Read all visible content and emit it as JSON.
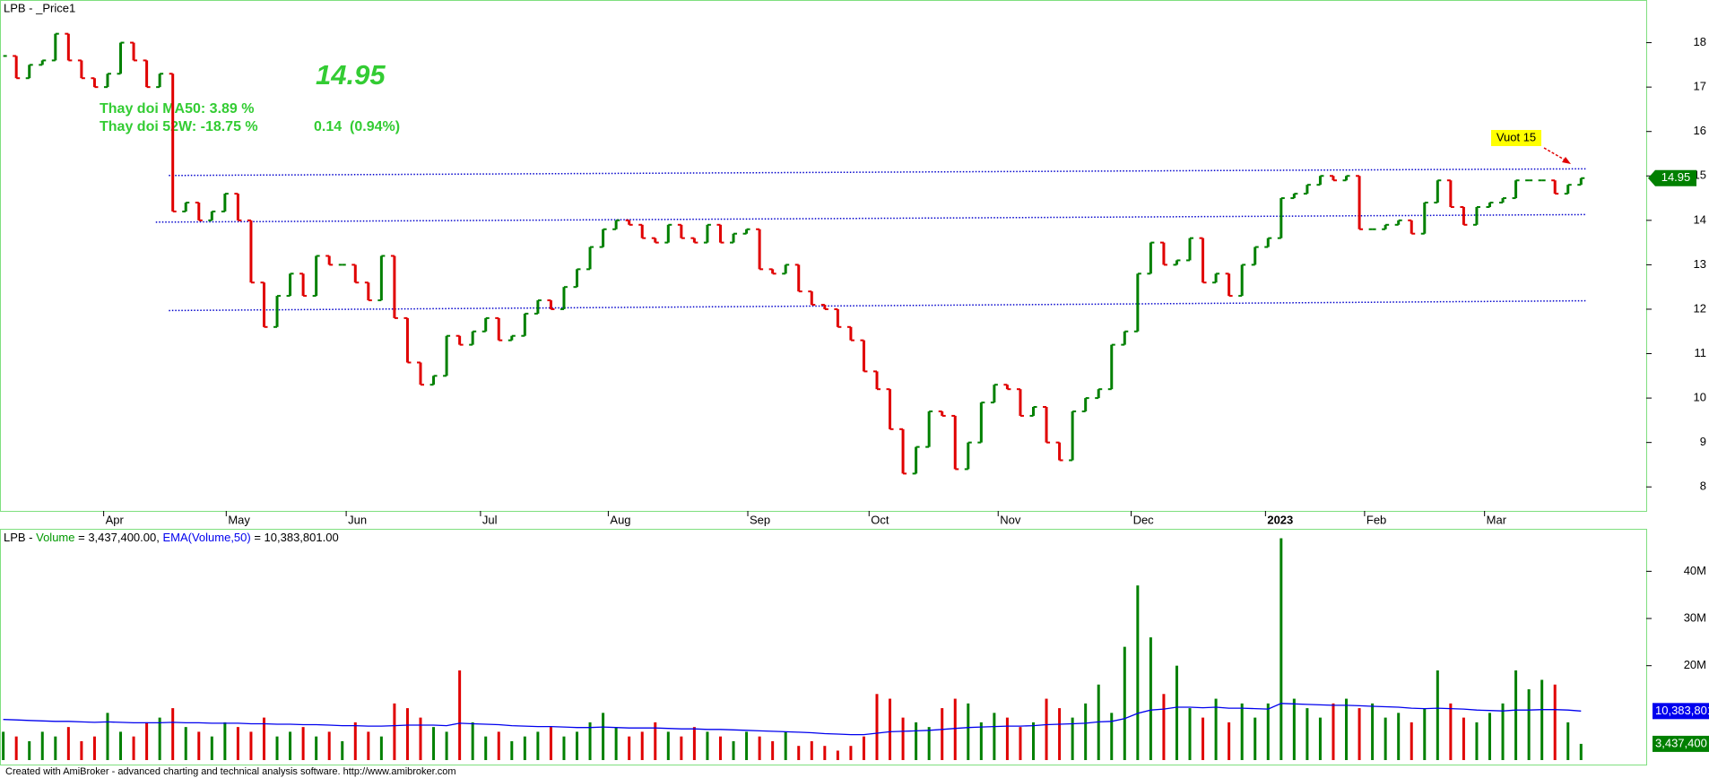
{
  "chart_data": [
    {
      "type": "ohlc",
      "title": "LPB - _Price1",
      "info": [
        "Thay doi MA50: 3.89 %",
        "Thay doi 52W: -18.75 %",
        "0.14  (0.94%)"
      ],
      "up_color": "#008000",
      "down_color": "#e00000",
      "text_color": "#33cc33",
      "close": [
        17.7,
        17.2,
        17.5,
        17.6,
        18.2,
        17.6,
        17.2,
        17.0,
        17.3,
        18.0,
        17.6,
        17.0,
        17.3,
        14.2,
        14.4,
        14.0,
        14.2,
        14.6,
        14.0,
        12.6,
        11.6,
        12.3,
        12.8,
        12.3,
        13.2,
        13.0,
        13.0,
        12.6,
        12.2,
        13.2,
        11.8,
        10.8,
        10.3,
        10.5,
        11.4,
        11.2,
        11.5,
        11.8,
        11.3,
        11.4,
        11.9,
        12.2,
        12.0,
        12.5,
        12.9,
        13.4,
        13.8,
        14.0,
        13.9,
        13.6,
        13.5,
        13.9,
        13.6,
        13.5,
        13.9,
        13.5,
        13.7,
        13.8,
        12.9,
        12.8,
        13.0,
        12.4,
        12.1,
        12.0,
        11.6,
        11.3,
        10.6,
        10.2,
        9.3,
        8.3,
        8.9,
        9.7,
        9.6,
        8.4,
        9.0,
        9.9,
        10.3,
        10.2,
        9.6,
        9.8,
        9.0,
        8.6,
        9.7,
        10.0,
        10.2,
        11.2,
        11.5,
        12.8,
        13.5,
        13.0,
        13.1,
        13.6,
        12.6,
        12.8,
        12.3,
        13.0,
        13.4,
        13.6,
        14.5,
        14.6,
        14.8,
        15.0,
        14.9,
        15.0,
        13.8,
        13.8,
        13.9,
        14.0,
        13.7,
        14.4,
        14.9,
        14.3,
        13.9,
        14.3,
        14.4,
        14.5,
        14.9,
        14.9,
        14.9,
        14.6,
        14.8,
        14.95
      ],
      "xlim": [
        -0.25,
        126
      ],
      "ylim": [
        7.46,
        18.96
      ],
      "yticks": [
        8,
        9,
        10,
        11,
        12,
        13,
        14,
        15,
        16,
        17,
        18
      ],
      "xticks": [
        {
          "value": 7.7,
          "label": "Apr"
        },
        {
          "value": 17.1,
          "label": "May"
        },
        {
          "value": 26.3,
          "label": "Jun"
        },
        {
          "value": 36.6,
          "label": "Jul"
        },
        {
          "value": 46.4,
          "label": "Aug"
        },
        {
          "value": 57.1,
          "label": "Sep"
        },
        {
          "value": 66.4,
          "label": "Oct"
        },
        {
          "value": 76.3,
          "label": "Nov"
        },
        {
          "value": 86.5,
          "label": "Dec"
        },
        {
          "value": 96.8,
          "label": "2023"
        },
        {
          "value": 104.4,
          "label": "Feb"
        },
        {
          "value": 113.6,
          "label": "Mar"
        }
      ],
      "trendlines": [
        {
          "x": [
            12.7,
            121.4
          ],
          "y": [
            15.01,
            15.16
          ]
        },
        {
          "x": [
            11.7,
            121.4
          ],
          "y": [
            13.96,
            14.13
          ]
        },
        {
          "x": [
            12.7,
            121.4
          ],
          "y": [
            11.97,
            12.19
          ]
        }
      ],
      "trendline_color": "#0000cc",
      "annotations": [
        {
          "text": "Vuot 15"
        }
      ]
    },
    {
      "type": "bar",
      "header_parts": [
        "LPB - ",
        " = 3,437,400.00, ",
        " = 10,383,801.00"
      ],
      "series": [
        {
          "name": "Volume",
          "type": "bar",
          "color": "#009900",
          "last_label": "3,437,400",
          "values": [
            6,
            5,
            4,
            6,
            5,
            7,
            4,
            5,
            10,
            6,
            5,
            8,
            9,
            11,
            7,
            6,
            5,
            8,
            7,
            6,
            9,
            5,
            6,
            7,
            5,
            6,
            4,
            8,
            6,
            5,
            12,
            11,
            9,
            7,
            6,
            19,
            8,
            5,
            6,
            4,
            5,
            6,
            7,
            5,
            6,
            8,
            10,
            7,
            5,
            6,
            8,
            6,
            5,
            7,
            6,
            5,
            4,
            6,
            5,
            4,
            6,
            3,
            4,
            3,
            2,
            3,
            5,
            14,
            13,
            9,
            8,
            7,
            11,
            13,
            12,
            8,
            10,
            9,
            7,
            8,
            13,
            11,
            9,
            12,
            16,
            10,
            24,
            37,
            26,
            14,
            20,
            11,
            9,
            13,
            8,
            12,
            9,
            12,
            47,
            13,
            11,
            9,
            12,
            13,
            11,
            12,
            9,
            10,
            8,
            11,
            19,
            12,
            9,
            8,
            10,
            12,
            19,
            15,
            17,
            16,
            8,
            3.4374
          ]
        },
        {
          "name": "EMA(Volume,50)",
          "type": "line",
          "color": "#0000ee",
          "last_label": "10,383,801",
          "values": [
            8.6,
            8.5,
            8.4,
            8.3,
            8.2,
            8.2,
            8.1,
            8.0,
            8.1,
            8.0,
            7.9,
            7.9,
            7.9,
            8.0,
            7.9,
            7.9,
            7.8,
            7.8,
            7.8,
            7.7,
            7.7,
            7.6,
            7.6,
            7.5,
            7.5,
            7.4,
            7.3,
            7.3,
            7.2,
            7.2,
            7.3,
            7.4,
            7.4,
            7.4,
            7.3,
            7.8,
            7.7,
            7.6,
            7.5,
            7.3,
            7.2,
            7.1,
            7.1,
            7.0,
            6.9,
            6.9,
            7.0,
            6.9,
            6.8,
            6.8,
            6.8,
            6.7,
            6.6,
            6.6,
            6.5,
            6.5,
            6.4,
            6.3,
            6.2,
            6.1,
            6.0,
            5.9,
            5.8,
            5.6,
            5.5,
            5.4,
            5.4,
            5.7,
            6.0,
            6.1,
            6.2,
            6.3,
            6.5,
            6.7,
            6.9,
            7.0,
            7.1,
            7.2,
            7.2,
            7.3,
            7.5,
            7.6,
            7.7,
            7.8,
            8.1,
            8.2,
            8.8,
            9.9,
            10.6,
            10.8,
            11.2,
            11.2,
            11.1,
            11.2,
            11.0,
            11.0,
            10.9,
            10.8,
            12.0,
            11.9,
            11.8,
            11.7,
            11.6,
            11.6,
            11.5,
            11.4,
            11.3,
            11.2,
            11.0,
            10.9,
            11.0,
            10.9,
            10.8,
            10.6,
            10.5,
            10.4,
            10.6,
            10.6,
            10.7,
            10.7,
            10.6,
            10.383801
          ]
        }
      ],
      "ylim": [
        0,
        49
      ],
      "yticks": [
        {
          "value": 20,
          "label": "20M"
        },
        {
          "value": 30,
          "label": "30M"
        },
        {
          "value": 40,
          "label": "40M"
        }
      ]
    }
  ],
  "footer": "Created with AmiBroker - advanced charting and technical analysis software. http://www.amibroker.com"
}
